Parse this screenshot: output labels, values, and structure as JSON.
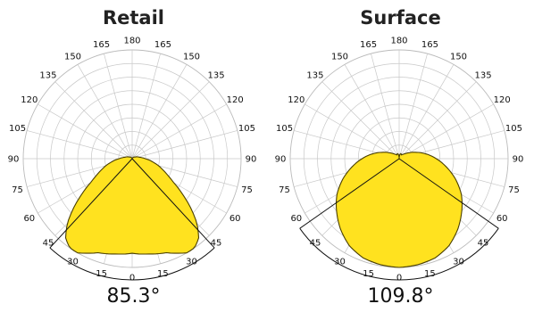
{
  "colors": {
    "fill": "#FFE21F",
    "outline": "#4A3F00",
    "grid": "#C8C8C8",
    "text": "#111111"
  },
  "chart_data": [
    {
      "type": "polar",
      "title": "Retail",
      "beam_angle_label": "85.3°",
      "beam_angle_deg": 85.3,
      "angle_tick_labels": [
        "180",
        "165",
        "150",
        "135",
        "120",
        "105",
        "90",
        "75",
        "60",
        "45",
        "30",
        "15",
        "0"
      ],
      "rlim": [
        0,
        1
      ],
      "grid": true,
      "profile": {
        "angles_deg": [
          0,
          10,
          20,
          30,
          35,
          40,
          45,
          50,
          55,
          60,
          65,
          70,
          80,
          90,
          100,
          120,
          140,
          160,
          170,
          180
        ],
        "intensity": [
          0.87,
          0.89,
          0.92,
          1.0,
          1.0,
          0.95,
          0.84,
          0.7,
          0.56,
          0.44,
          0.36,
          0.3,
          0.2,
          0.12,
          0.07,
          0.03,
          0.015,
          0.005,
          0.002,
          0.0
        ]
      }
    },
    {
      "type": "polar",
      "title": "Surface",
      "beam_angle_label": "109.8°",
      "beam_angle_deg": 109.8,
      "angle_tick_labels": [
        "180",
        "165",
        "150",
        "135",
        "120",
        "105",
        "90",
        "75",
        "60",
        "45",
        "30",
        "15",
        "0"
      ],
      "rlim": [
        0,
        1
      ],
      "grid": true,
      "profile": {
        "angles_deg": [
          0,
          10,
          20,
          30,
          40,
          50,
          60,
          70,
          80,
          90,
          100,
          110,
          120,
          130,
          140,
          150,
          160,
          170,
          180
        ],
        "intensity": [
          1.0,
          0.99,
          0.97,
          0.92,
          0.84,
          0.75,
          0.66,
          0.55,
          0.44,
          0.34,
          0.25,
          0.17,
          0.11,
          0.07,
          0.05,
          0.04,
          0.05,
          0.04,
          0.0
        ]
      }
    }
  ]
}
